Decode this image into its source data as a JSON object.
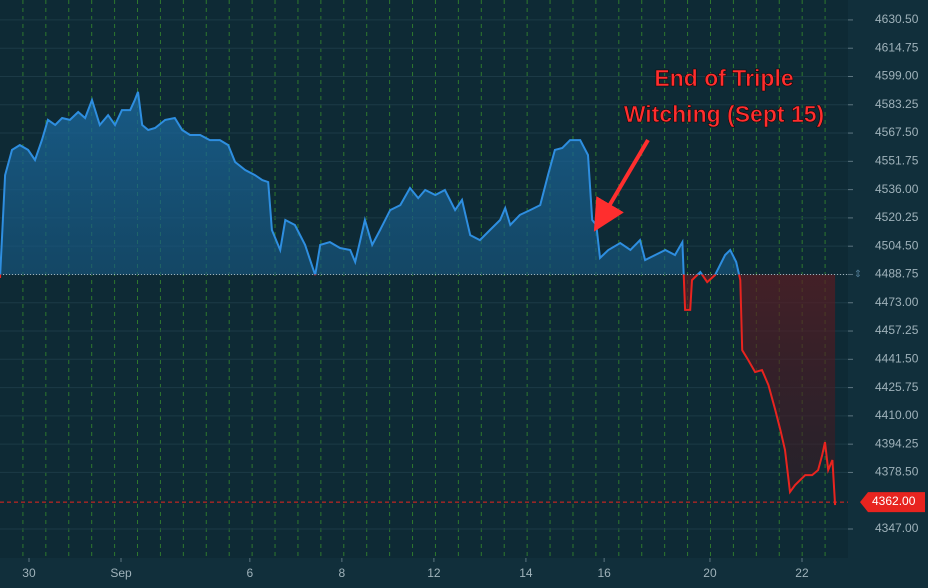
{
  "chart_data": {
    "type": "line",
    "annotation": [
      "End of Triple",
      "Witching (Sept 15)"
    ],
    "baseline": 4488.75,
    "last_price": {
      "value": 4362,
      "label": "4362.00"
    },
    "colors": {
      "above": "#2e8ee0",
      "below": "#e8241f",
      "grid": "#3c9a2a"
    },
    "x": [
      -0.63,
      -0.52,
      -0.37,
      -0.2,
      -0.02,
      0.13,
      0.28,
      0.41,
      0.57,
      0.72,
      0.89,
      1.07,
      1.22,
      1.37,
      1.54,
      1.72,
      1.87,
      2.02,
      2.2,
      2.3,
      2.37,
      2.46,
      2.59,
      2.74,
      2.96,
      3.17,
      3.33,
      3.5,
      3.72,
      3.93,
      4.15,
      4.33,
      4.48,
      4.7,
      4.91,
      5.07,
      5.2,
      5.28,
      5.46,
      5.57,
      5.78,
      6,
      6.11,
      6.22,
      6.33,
      6.54,
      6.76,
      6.98,
      7.09,
      7.2,
      7.3,
      7.46,
      7.63,
      7.85,
      8.07,
      8.28,
      8.46,
      8.61,
      8.83,
      9.04,
      9.26,
      9.41,
      9.59,
      9.8,
      10.02,
      10.24,
      10.35,
      10.46,
      10.67,
      10.89,
      11.11,
      11.28,
      11.43,
      11.59,
      11.76,
      11.98,
      12.15,
      12.24,
      12.33,
      12.41,
      12.59,
      12.85,
      13.07,
      13.28,
      13.39,
      13.61,
      13.83,
      14.04,
      14.2,
      14.26,
      14.37,
      14.41,
      14.59,
      14.74,
      14.91,
      15.13,
      15.24,
      15.37,
      15.46,
      15.5,
      15.63,
      15.78,
      15.93,
      16.07,
      16.22,
      16.33,
      16.43,
      16.54,
      16.65,
      16.87,
      17.02,
      17.15,
      17.24,
      17.3,
      17.37,
      17.46,
      17.52
    ],
    "values": [
      4486.8,
      4544.1,
      4558.1,
      4560.8,
      4558.1,
      4552.5,
      4563.6,
      4574.8,
      4572.0,
      4575.9,
      4574.8,
      4579.2,
      4575.9,
      4585.9,
      4572.0,
      4577.5,
      4572.0,
      4580.3,
      4580.3,
      4585.9,
      4590.4,
      4572.0,
      4569.2,
      4570.3,
      4574.8,
      4575.9,
      4569.2,
      4566.4,
      4566.4,
      4563.6,
      4563.6,
      4560.8,
      4551.4,
      4546.9,
      4544.1,
      4541.3,
      4540.2,
      4513.5,
      4502.4,
      4519.1,
      4516.3,
      4505.2,
      4496.8,
      4488.4,
      4505.2,
      4506.8,
      4503.5,
      4502.4,
      4495.7,
      4507.9,
      4519.1,
      4505.2,
      4513.5,
      4524.6,
      4527.4,
      4536.9,
      4531.3,
      4535.8,
      4533.0,
      4535.8,
      4524.6,
      4530.2,
      4510.7,
      4507.9,
      4513.5,
      4519.1,
      4525.7,
      4516.3,
      4521.9,
      4524.6,
      4527.4,
      4544.1,
      4558.1,
      4559.2,
      4563.6,
      4563.6,
      4555.3,
      4519.1,
      4516.3,
      4497.9,
      4502.4,
      4506.3,
      4502.4,
      4507.9,
      4496.8,
      4499.6,
      4502.4,
      4499.6,
      4506.8,
      4469.0,
      4469.0,
      4485.6,
      4490.1,
      4484.5,
      4488.4,
      4499.6,
      4502.4,
      4495.7,
      4485.6,
      4446.6,
      4441.1,
      4434.4,
      4435.5,
      4427.2,
      4413.2,
      4402.1,
      4391.0,
      4367.6,
      4371.5,
      4377.0,
      4377.0,
      4379.8,
      4388.2,
      4395.4,
      4379.8,
      4385.4,
      4360.3
    ],
    "xlim": [
      -0.63,
      17.8
    ],
    "xticks": [
      {
        "value": 0,
        "label": "30"
      },
      {
        "value": 2,
        "label": "Sep"
      },
      {
        "value": 4.8,
        "label": "6"
      },
      {
        "value": 6.8,
        "label": "8"
      },
      {
        "value": 8.8,
        "label": "12"
      },
      {
        "value": 10.8,
        "label": "14"
      },
      {
        "value": 12.5,
        "label": "16"
      },
      {
        "value": 14.8,
        "label": "20"
      },
      {
        "value": 16.8,
        "label": "22"
      }
    ],
    "ylim": [
      4330.85,
      4641.6
    ],
    "yticks": [
      {
        "value": 4630.5,
        "label": "4630.50"
      },
      {
        "value": 4614.75,
        "label": "4614.75"
      },
      {
        "value": 4599,
        "label": "4599.00"
      },
      {
        "value": 4583.25,
        "label": "4583.25"
      },
      {
        "value": 4567.5,
        "label": "4567.50"
      },
      {
        "value": 4551.75,
        "label": "4551.75"
      },
      {
        "value": 4536,
        "label": "4536.00"
      },
      {
        "value": 4520.25,
        "label": "4520.25"
      },
      {
        "value": 4504.5,
        "label": "4504.50"
      },
      {
        "value": 4488.75,
        "label": "4488.75"
      },
      {
        "value": 4473,
        "label": "4473.00"
      },
      {
        "value": 4457.25,
        "label": "4457.25"
      },
      {
        "value": 4441.5,
        "label": "4441.50"
      },
      {
        "value": 4425.75,
        "label": "4425.75"
      },
      {
        "value": 4410,
        "label": "4410.00"
      },
      {
        "value": 4394.25,
        "label": "4394.25"
      },
      {
        "value": 4378.5,
        "label": "4378.50"
      },
      {
        "value": 4347,
        "label": "4347.00"
      }
    ]
  }
}
